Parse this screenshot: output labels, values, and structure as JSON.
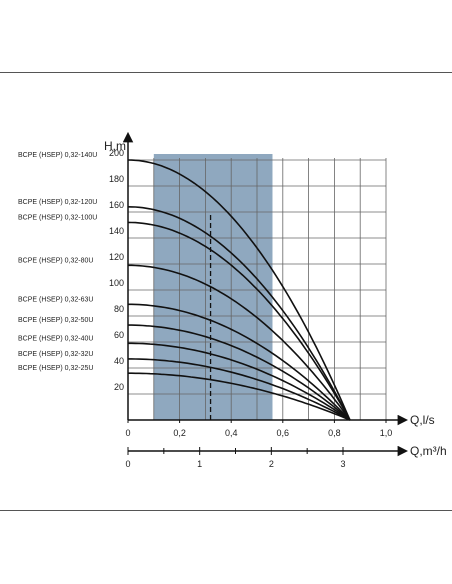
{
  "chart_data": {
    "type": "line",
    "title": "",
    "ylabel": "H,m",
    "xlabel": "Q,l/s",
    "x2label": "Q,m³/h",
    "xlim": [
      0,
      1.0
    ],
    "ylim": [
      0,
      200
    ],
    "x_ticks": [
      "0",
      "0,2",
      "0,4",
      "0,6",
      "0,8",
      "1,0"
    ],
    "x_tick_values": [
      0,
      0.2,
      0.4,
      0.6,
      0.8,
      1.0
    ],
    "y_ticks": [
      "20",
      "40",
      "60",
      "80",
      "100",
      "120",
      "140",
      "160",
      "180",
      "200"
    ],
    "y_tick_values": [
      20,
      40,
      60,
      80,
      100,
      120,
      140,
      160,
      180,
      200
    ],
    "x2_ticks": [
      "0",
      "1",
      "2",
      "3"
    ],
    "x2_tick_values": [
      0,
      1,
      2,
      3
    ],
    "x2_max": 3.6,
    "grid": true,
    "shaded_region": {
      "x_from": 0.1,
      "x_to": 0.56,
      "color": "#8fa8bf"
    },
    "reference_line": {
      "x": 0.32,
      "style": "dashed"
    },
    "shutoff_flow": 0.86,
    "series": [
      {
        "name": "BCPE (HSEP) 0,32-140U",
        "shutoff_head": 200
      },
      {
        "name": "BCPE (HSEP) 0,32-120U",
        "shutoff_head": 164
      },
      {
        "name": "BCPE (HSEP) 0,32-100U",
        "shutoff_head": 152
      },
      {
        "name": "BCPE (HSEP) 0,32-80U",
        "shutoff_head": 119
      },
      {
        "name": "BCPE (HSEP) 0,32-63U",
        "shutoff_head": 89
      },
      {
        "name": "BCPE (HSEP) 0,32-50U",
        "shutoff_head": 73
      },
      {
        "name": "BCPE (HSEP) 0,32-40U",
        "shutoff_head": 59
      },
      {
        "name": "BCPE (HSEP) 0,32-32U",
        "shutoff_head": 47
      },
      {
        "name": "BCPE (HSEP) 0,32-25U",
        "shutoff_head": 36
      }
    ],
    "colors": {
      "curve": "#111111",
      "grid": "#666666",
      "axis": "#111111"
    }
  }
}
